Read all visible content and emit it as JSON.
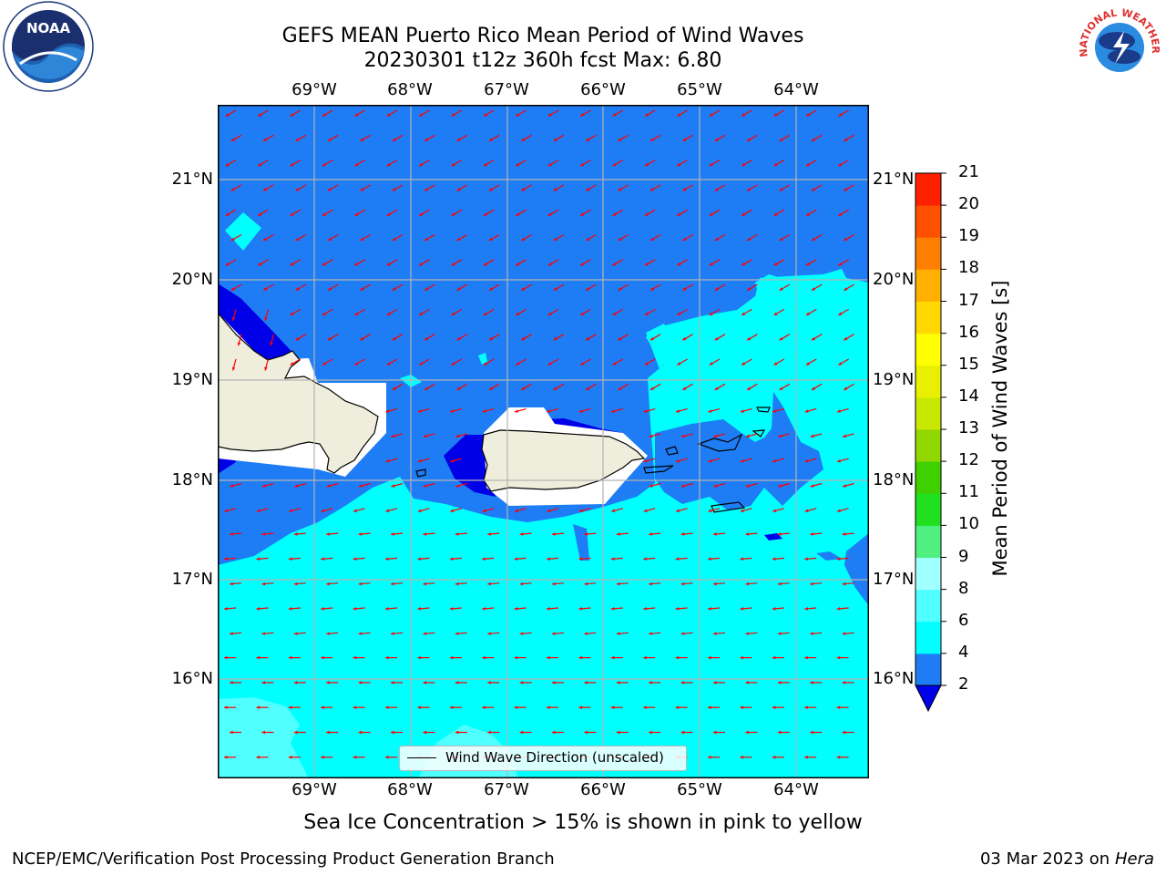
{
  "title": {
    "line1": "GEFS MEAN Puerto Rico Mean Period of Wind Waves",
    "line2": "20230301 t12z 360h fcst   Max: 6.80"
  },
  "map": {
    "lon_labels": [
      "69°W",
      "68°W",
      "67°W",
      "66°W",
      "65°W",
      "64°W"
    ],
    "lat_labels": [
      "21°N",
      "20°N",
      "19°N",
      "18°N",
      "17°N",
      "16°N"
    ],
    "legend_label": "Wind Wave Direction (unscaled)",
    "colors": {
      "land": "#efeedc",
      "below_2": "#0000e8",
      "p2_4": "#1e7df5",
      "p4_6": "#00ffff",
      "p6_8": "#50ffff",
      "arrow": "#ff0000"
    }
  },
  "colorbar": {
    "title": "Mean Period of Wind Waves [s]",
    "ticks": [
      "2",
      "4",
      "6",
      "8",
      "9",
      "10",
      "11",
      "12",
      "13",
      "14",
      "15",
      "16",
      "17",
      "18",
      "19",
      "20",
      "21"
    ],
    "colors": [
      "#1e7df5",
      "#00ffff",
      "#50ffff",
      "#a0ffff",
      "#50f080",
      "#20e020",
      "#40d000",
      "#90d800",
      "#c8e800",
      "#e8f000",
      "#ffff00",
      "#ffd800",
      "#ffb000",
      "#ff8000",
      "#ff5000",
      "#ff2000",
      "#ff0000"
    ],
    "under_color": "#0000e8"
  },
  "caption": "Sea Ice Concentration > 15% is shown in pink to yellow",
  "footer": {
    "left": "NCEP/EMC/Verification Post Processing Product Generation Branch",
    "date": "03 Mar 2023 on",
    "machine": "Hera"
  },
  "logos": {
    "left": "NOAA",
    "right_text": "NATIONAL WEATHER SERVICE"
  }
}
